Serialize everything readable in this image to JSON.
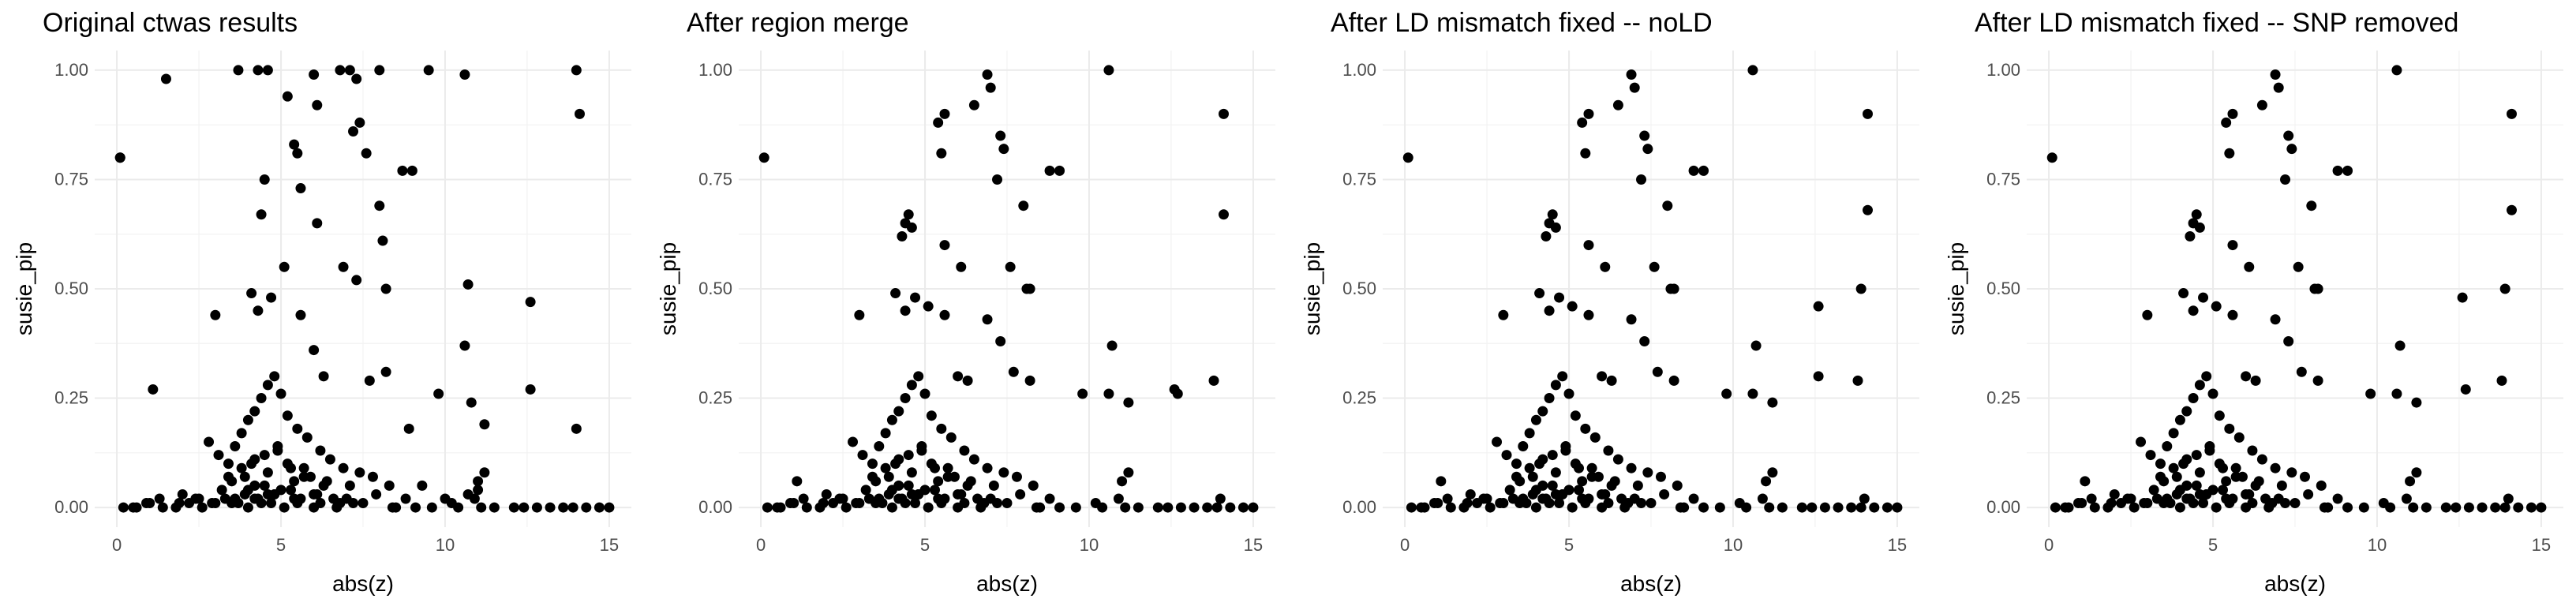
{
  "chart_data": [
    {
      "type": "scatter",
      "title": "Original ctwas results",
      "xlabel": "abs(z)",
      "ylabel": "susie_pip",
      "xlim": [
        0,
        15
      ],
      "ylim": [
        0,
        1
      ],
      "xticks": [
        0,
        5,
        10,
        15
      ],
      "yticks": [
        0.0,
        0.25,
        0.5,
        0.75,
        1.0
      ],
      "ytick_labels": [
        "0.00",
        "0.25",
        "0.50",
        "0.75",
        "1.00"
      ],
      "xtick_labels": [
        "0",
        "5",
        "10",
        "15"
      ],
      "grid": true,
      "x": [
        0.1,
        1.5,
        3.7,
        4.3,
        4.6,
        6.0,
        6.8,
        7.1,
        8.0,
        9.5,
        10.6,
        14.0,
        5.2,
        6.1,
        7.3,
        5.4,
        5.5,
        7.4,
        7.2,
        14.1,
        8.7,
        9.0,
        8.0,
        0.1,
        4.5,
        4.4,
        5.6,
        6.1,
        7.6,
        8.1,
        8.2,
        4.1,
        4.3,
        4.7,
        5.1,
        5.6,
        6.9,
        7.3,
        10.7,
        12.6,
        3.0,
        14.0,
        6.0,
        6.3,
        7.7,
        8.2,
        1.1,
        10.6,
        10.8,
        9.8,
        11.2,
        12.6,
        2.8,
        3.1,
        3.4,
        3.6,
        3.8,
        4.0,
        4.2,
        4.4,
        4.6,
        4.8,
        5.0,
        5.2,
        5.5,
        5.8,
        6.2,
        6.5,
        6.9,
        7.4,
        7.8,
        8.3,
        3.5,
        3.9,
        4.1,
        4.5,
        4.9,
        5.3,
        5.7,
        6.4,
        7.1,
        4.0,
        4.2,
        4.6,
        5.0,
        5.4,
        6.0,
        6.6,
        3.6,
        4.4,
        4.8,
        5.6,
        6.8,
        0.5,
        1.0,
        1.3,
        1.8,
        2.2,
        2.6,
        3.0,
        3.3,
        3.7,
        4.0,
        4.3,
        4.7,
        5.1,
        5.5,
        6.0,
        6.7,
        7.5,
        8.4,
        9.1,
        10.2,
        10.9,
        11.1,
        12.1,
        12.8,
        13.6,
        14.3,
        14.7,
        15.0,
        2.0,
        2.5,
        3.2,
        3.9,
        4.5,
        5.3,
        6.1,
        7.0,
        7.9,
        8.8,
        11.0,
        11.2,
        3.4,
        3.8,
        4.6,
        5.2,
        5.9,
        6.3,
        4.2,
        4.9,
        5.7,
        0.2,
        0.6,
        0.9,
        1.4,
        1.9,
        2.4,
        2.9,
        3.5,
        4.2,
        4.8,
        5.4,
        6.2,
        7.2,
        8.5,
        9.6,
        10.4,
        11.5,
        12.4,
        13.2,
        13.9,
        11.0,
        8.9,
        9.3,
        10.0,
        10.7
      ],
      "y": [
        0.8,
        0.98,
        1.0,
        1.0,
        1.0,
        0.99,
        1.0,
        1.0,
        1.0,
        1.0,
        0.99,
        1.0,
        0.94,
        0.92,
        0.98,
        0.83,
        0.81,
        0.88,
        0.86,
        0.9,
        0.77,
        0.77,
        0.69,
        0.8,
        0.75,
        0.67,
        0.73,
        0.65,
        0.81,
        0.61,
        0.5,
        0.49,
        0.45,
        0.48,
        0.55,
        0.44,
        0.55,
        0.52,
        0.51,
        0.47,
        0.44,
        0.18,
        0.36,
        0.3,
        0.29,
        0.31,
        0.27,
        0.37,
        0.24,
        0.26,
        0.19,
        0.27,
        0.15,
        0.12,
        0.1,
        0.14,
        0.17,
        0.2,
        0.22,
        0.25,
        0.28,
        0.3,
        0.26,
        0.21,
        0.18,
        0.16,
        0.13,
        0.11,
        0.09,
        0.08,
        0.07,
        0.05,
        0.06,
        0.07,
        0.1,
        0.12,
        0.14,
        0.09,
        0.07,
        0.06,
        0.05,
        0.04,
        0.05,
        0.03,
        0.04,
        0.06,
        0.03,
        0.02,
        0.02,
        0.01,
        0.03,
        0.02,
        0.01,
        0.0,
        0.01,
        0.02,
        0.0,
        0.01,
        0.0,
        0.01,
        0.02,
        0.01,
        0.0,
        0.02,
        0.01,
        0.0,
        0.01,
        0.0,
        0.0,
        0.01,
        0.0,
        0.0,
        0.01,
        0.02,
        0.0,
        0.0,
        0.0,
        0.0,
        0.0,
        0.0,
        0.0,
        0.03,
        0.02,
        0.04,
        0.03,
        0.05,
        0.04,
        0.03,
        0.02,
        0.03,
        0.02,
        0.06,
        0.08,
        0.07,
        0.09,
        0.08,
        0.1,
        0.07,
        0.05,
        0.11,
        0.13,
        0.09,
        0.0,
        0.0,
        0.01,
        0.0,
        0.01,
        0.02,
        0.01,
        0.01,
        0.02,
        0.03,
        0.02,
        0.01,
        0.01,
        0.0,
        0.0,
        0.0,
        0.0,
        0.0,
        0.0,
        0.0,
        0.04,
        0.18,
        0.05,
        0.02,
        0.03
      ]
    },
    {
      "type": "scatter",
      "title": "After region merge",
      "xlabel": "abs(z)",
      "ylabel": "susie_pip",
      "xlim": [
        0,
        15
      ],
      "ylim": [
        0,
        1
      ],
      "xticks": [
        0,
        5,
        10,
        15
      ],
      "yticks": [
        0.0,
        0.25,
        0.5,
        0.75,
        1.0
      ],
      "ytick_labels": [
        "0.00",
        "0.25",
        "0.50",
        "0.75",
        "1.00"
      ],
      "xtick_labels": [
        "0",
        "5",
        "10",
        "15"
      ],
      "grid": true,
      "x": [
        0.1,
        10.6,
        6.9,
        7.0,
        6.5,
        5.4,
        5.6,
        7.3,
        7.4,
        14.1,
        8.8,
        9.1,
        8.0,
        5.5,
        7.2,
        4.5,
        4.4,
        4.6,
        4.3,
        5.6,
        6.1,
        7.6,
        8.1,
        8.2,
        14.1,
        4.1,
        4.4,
        4.7,
        5.1,
        5.6,
        6.9,
        7.3,
        3.0,
        12.6,
        12.7,
        13.8,
        10.7,
        10.6,
        11.2,
        9.8,
        6.0,
        6.3,
        7.7,
        8.2,
        2.8,
        3.1,
        3.4,
        3.6,
        3.8,
        4.0,
        4.2,
        4.4,
        4.6,
        4.8,
        5.0,
        5.2,
        5.5,
        5.8,
        6.2,
        6.5,
        6.9,
        7.4,
        7.8,
        8.3,
        3.5,
        3.9,
        4.1,
        4.5,
        4.9,
        5.3,
        5.7,
        6.4,
        7.1,
        4.0,
        4.2,
        4.6,
        5.0,
        5.4,
        6.0,
        6.6,
        3.6,
        4.4,
        4.8,
        5.6,
        6.8,
        0.5,
        1.0,
        1.3,
        1.8,
        2.2,
        2.6,
        3.0,
        3.3,
        3.7,
        4.0,
        4.3,
        4.7,
        5.1,
        5.5,
        6.0,
        6.7,
        7.5,
        8.4,
        9.1,
        10.2,
        10.9,
        11.1,
        12.1,
        12.8,
        13.6,
        14.3,
        14.7,
        15.0,
        2.0,
        2.5,
        3.2,
        3.9,
        4.5,
        5.3,
        6.1,
        7.0,
        7.9,
        8.8,
        11.0,
        11.2,
        3.4,
        3.8,
        4.6,
        5.2,
        5.9,
        6.3,
        4.2,
        4.9,
        5.7,
        0.2,
        0.6,
        0.9,
        1.4,
        1.9,
        2.4,
        2.9,
        3.5,
        4.2,
        4.8,
        5.4,
        6.2,
        7.2,
        8.5,
        9.6,
        10.4,
        11.5,
        12.4,
        13.2,
        13.9,
        1.1,
        14.0
      ],
      "y": [
        0.8,
        1.0,
        0.99,
        0.96,
        0.92,
        0.88,
        0.9,
        0.85,
        0.82,
        0.9,
        0.77,
        0.77,
        0.69,
        0.81,
        0.75,
        0.67,
        0.65,
        0.64,
        0.62,
        0.6,
        0.55,
        0.55,
        0.5,
        0.5,
        0.67,
        0.49,
        0.45,
        0.48,
        0.46,
        0.44,
        0.43,
        0.38,
        0.44,
        0.27,
        0.26,
        0.29,
        0.37,
        0.26,
        0.24,
        0.26,
        0.3,
        0.29,
        0.31,
        0.29,
        0.15,
        0.12,
        0.1,
        0.14,
        0.17,
        0.2,
        0.22,
        0.25,
        0.28,
        0.3,
        0.26,
        0.21,
        0.18,
        0.16,
        0.13,
        0.11,
        0.09,
        0.08,
        0.07,
        0.05,
        0.06,
        0.07,
        0.1,
        0.12,
        0.14,
        0.09,
        0.07,
        0.06,
        0.05,
        0.04,
        0.05,
        0.03,
        0.04,
        0.06,
        0.03,
        0.02,
        0.02,
        0.01,
        0.03,
        0.02,
        0.01,
        0.0,
        0.01,
        0.02,
        0.0,
        0.01,
        0.0,
        0.01,
        0.02,
        0.01,
        0.0,
        0.02,
        0.01,
        0.0,
        0.01,
        0.0,
        0.0,
        0.01,
        0.0,
        0.0,
        0.01,
        0.02,
        0.0,
        0.0,
        0.0,
        0.0,
        0.0,
        0.0,
        0.0,
        0.03,
        0.02,
        0.04,
        0.03,
        0.05,
        0.04,
        0.03,
        0.02,
        0.03,
        0.02,
        0.06,
        0.08,
        0.07,
        0.09,
        0.08,
        0.1,
        0.07,
        0.05,
        0.11,
        0.13,
        0.09,
        0.0,
        0.0,
        0.01,
        0.0,
        0.01,
        0.02,
        0.01,
        0.01,
        0.02,
        0.03,
        0.02,
        0.01,
        0.01,
        0.0,
        0.0,
        0.0,
        0.0,
        0.0,
        0.0,
        0.0,
        0.06,
        0.02
      ]
    },
    {
      "type": "scatter",
      "title": "After LD mismatch fixed -- noLD",
      "xlabel": "abs(z)",
      "ylabel": "susie_pip",
      "xlim": [
        0,
        15
      ],
      "ylim": [
        0,
        1
      ],
      "xticks": [
        0,
        5,
        10,
        15
      ],
      "yticks": [
        0.0,
        0.25,
        0.5,
        0.75,
        1.0
      ],
      "ytick_labels": [
        "0.00",
        "0.25",
        "0.50",
        "0.75",
        "1.00"
      ],
      "xtick_labels": [
        "0",
        "5",
        "10",
        "15"
      ],
      "grid": true,
      "x": [
        0.1,
        10.6,
        6.9,
        7.0,
        6.5,
        5.4,
        5.6,
        7.3,
        7.4,
        14.1,
        8.8,
        9.1,
        8.0,
        5.5,
        7.2,
        4.5,
        4.4,
        4.6,
        4.3,
        5.6,
        6.1,
        7.6,
        8.1,
        8.2,
        14.1,
        4.1,
        4.4,
        4.7,
        5.1,
        5.6,
        6.9,
        7.3,
        3.0,
        12.6,
        12.6,
        13.8,
        13.9,
        10.7,
        10.6,
        11.2,
        9.8,
        6.0,
        6.3,
        7.7,
        8.2,
        2.8,
        3.1,
        3.4,
        3.6,
        3.8,
        4.0,
        4.2,
        4.4,
        4.6,
        4.8,
        5.0,
        5.2,
        5.5,
        5.8,
        6.2,
        6.5,
        6.9,
        7.4,
        7.8,
        8.3,
        3.5,
        3.9,
        4.1,
        4.5,
        4.9,
        5.3,
        5.7,
        6.4,
        7.1,
        4.0,
        4.2,
        4.6,
        5.0,
        5.4,
        6.0,
        6.6,
        3.6,
        4.4,
        4.8,
        5.6,
        6.8,
        0.5,
        1.0,
        1.3,
        1.8,
        2.2,
        2.6,
        3.0,
        3.3,
        3.7,
        4.0,
        4.3,
        4.7,
        5.1,
        5.5,
        6.0,
        6.7,
        7.5,
        8.4,
        9.1,
        10.2,
        10.9,
        11.1,
        12.1,
        12.8,
        13.6,
        14.3,
        14.7,
        15.0,
        2.0,
        2.5,
        3.2,
        3.9,
        4.5,
        5.3,
        6.1,
        7.0,
        7.9,
        8.8,
        11.0,
        11.2,
        3.4,
        3.8,
        4.6,
        5.2,
        5.9,
        6.3,
        4.2,
        4.9,
        5.7,
        0.2,
        0.6,
        0.9,
        1.4,
        1.9,
        2.4,
        2.9,
        3.5,
        4.2,
        4.8,
        5.4,
        6.2,
        7.2,
        8.5,
        9.6,
        10.4,
        11.5,
        12.4,
        13.2,
        13.9,
        1.1,
        14.0
      ],
      "y": [
        0.8,
        1.0,
        0.99,
        0.96,
        0.92,
        0.88,
        0.9,
        0.85,
        0.82,
        0.9,
        0.77,
        0.77,
        0.69,
        0.81,
        0.75,
        0.67,
        0.65,
        0.64,
        0.62,
        0.6,
        0.55,
        0.55,
        0.5,
        0.5,
        0.68,
        0.49,
        0.45,
        0.48,
        0.46,
        0.44,
        0.43,
        0.38,
        0.44,
        0.46,
        0.3,
        0.29,
        0.5,
        0.37,
        0.26,
        0.24,
        0.26,
        0.3,
        0.29,
        0.31,
        0.29,
        0.15,
        0.12,
        0.1,
        0.14,
        0.17,
        0.2,
        0.22,
        0.25,
        0.28,
        0.3,
        0.26,
        0.21,
        0.18,
        0.16,
        0.13,
        0.11,
        0.09,
        0.08,
        0.07,
        0.05,
        0.06,
        0.07,
        0.1,
        0.12,
        0.14,
        0.09,
        0.07,
        0.06,
        0.05,
        0.04,
        0.05,
        0.03,
        0.04,
        0.06,
        0.03,
        0.02,
        0.02,
        0.01,
        0.03,
        0.02,
        0.01,
        0.0,
        0.01,
        0.02,
        0.0,
        0.01,
        0.0,
        0.01,
        0.02,
        0.01,
        0.0,
        0.02,
        0.01,
        0.0,
        0.01,
        0.0,
        0.0,
        0.01,
        0.0,
        0.0,
        0.01,
        0.02,
        0.0,
        0.0,
        0.0,
        0.0,
        0.0,
        0.0,
        0.0,
        0.03,
        0.02,
        0.04,
        0.03,
        0.05,
        0.04,
        0.03,
        0.02,
        0.03,
        0.02,
        0.06,
        0.08,
        0.07,
        0.09,
        0.08,
        0.1,
        0.07,
        0.05,
        0.11,
        0.13,
        0.09,
        0.0,
        0.0,
        0.01,
        0.0,
        0.01,
        0.02,
        0.01,
        0.01,
        0.02,
        0.03,
        0.02,
        0.01,
        0.01,
        0.0,
        0.0,
        0.0,
        0.0,
        0.0,
        0.0,
        0.0,
        0.06,
        0.02
      ]
    },
    {
      "type": "scatter",
      "title": "After LD mismatch fixed -- SNP removed",
      "xlabel": "abs(z)",
      "ylabel": "susie_pip",
      "xlim": [
        0,
        15
      ],
      "ylim": [
        0,
        1
      ],
      "xticks": [
        0,
        5,
        10,
        15
      ],
      "yticks": [
        0.0,
        0.25,
        0.5,
        0.75,
        1.0
      ],
      "ytick_labels": [
        "0.00",
        "0.25",
        "0.50",
        "0.75",
        "1.00"
      ],
      "xtick_labels": [
        "0",
        "5",
        "10",
        "15"
      ],
      "grid": true,
      "x": [
        0.1,
        10.6,
        6.9,
        7.0,
        6.5,
        5.4,
        5.6,
        7.3,
        7.4,
        14.1,
        8.8,
        9.1,
        8.0,
        5.5,
        7.2,
        4.5,
        4.4,
        4.6,
        4.3,
        5.6,
        6.1,
        7.6,
        8.1,
        8.2,
        14.1,
        4.1,
        4.4,
        4.7,
        5.1,
        5.6,
        6.9,
        7.3,
        3.0,
        12.6,
        12.7,
        13.8,
        13.9,
        10.7,
        10.6,
        11.2,
        9.8,
        6.0,
        6.3,
        7.7,
        8.2,
        2.8,
        3.1,
        3.4,
        3.6,
        3.8,
        4.0,
        4.2,
        4.4,
        4.6,
        4.8,
        5.0,
        5.2,
        5.5,
        5.8,
        6.2,
        6.5,
        6.9,
        7.4,
        7.8,
        8.3,
        3.5,
        3.9,
        4.1,
        4.5,
        4.9,
        5.3,
        5.7,
        6.4,
        7.1,
        4.0,
        4.2,
        4.6,
        5.0,
        5.4,
        6.0,
        6.6,
        3.6,
        4.4,
        4.8,
        5.6,
        6.8,
        0.5,
        1.0,
        1.3,
        1.8,
        2.2,
        2.6,
        3.0,
        3.3,
        3.7,
        4.0,
        4.3,
        4.7,
        5.1,
        5.5,
        6.0,
        6.7,
        7.5,
        8.4,
        9.1,
        10.2,
        10.9,
        11.1,
        12.1,
        12.8,
        13.6,
        14.3,
        14.7,
        15.0,
        2.0,
        2.5,
        3.2,
        3.9,
        4.5,
        5.3,
        6.1,
        7.0,
        7.9,
        8.8,
        11.0,
        11.2,
        3.4,
        3.8,
        4.6,
        5.2,
        5.9,
        6.3,
        4.2,
        4.9,
        5.7,
        0.2,
        0.6,
        0.9,
        1.4,
        1.9,
        2.4,
        2.9,
        3.5,
        4.2,
        4.8,
        5.4,
        6.2,
        7.2,
        8.5,
        9.6,
        10.4,
        11.5,
        12.4,
        13.2,
        13.9,
        1.1,
        14.0
      ],
      "y": [
        0.8,
        1.0,
        0.99,
        0.96,
        0.92,
        0.88,
        0.9,
        0.85,
        0.82,
        0.9,
        0.77,
        0.77,
        0.69,
        0.81,
        0.75,
        0.67,
        0.65,
        0.64,
        0.62,
        0.6,
        0.55,
        0.55,
        0.5,
        0.5,
        0.68,
        0.49,
        0.45,
        0.48,
        0.46,
        0.44,
        0.43,
        0.38,
        0.44,
        0.48,
        0.27,
        0.29,
        0.5,
        0.37,
        0.26,
        0.24,
        0.26,
        0.3,
        0.29,
        0.31,
        0.29,
        0.15,
        0.12,
        0.1,
        0.14,
        0.17,
        0.2,
        0.22,
        0.25,
        0.28,
        0.3,
        0.26,
        0.21,
        0.18,
        0.16,
        0.13,
        0.11,
        0.09,
        0.08,
        0.07,
        0.05,
        0.06,
        0.07,
        0.1,
        0.12,
        0.14,
        0.09,
        0.07,
        0.06,
        0.05,
        0.04,
        0.05,
        0.03,
        0.04,
        0.06,
        0.03,
        0.02,
        0.02,
        0.01,
        0.03,
        0.02,
        0.01,
        0.0,
        0.01,
        0.02,
        0.0,
        0.01,
        0.0,
        0.01,
        0.02,
        0.01,
        0.0,
        0.02,
        0.01,
        0.0,
        0.01,
        0.0,
        0.0,
        0.01,
        0.0,
        0.0,
        0.01,
        0.02,
        0.0,
        0.0,
        0.0,
        0.0,
        0.0,
        0.0,
        0.0,
        0.03,
        0.02,
        0.04,
        0.03,
        0.05,
        0.04,
        0.03,
        0.02,
        0.03,
        0.02,
        0.06,
        0.08,
        0.07,
        0.09,
        0.08,
        0.1,
        0.07,
        0.05,
        0.11,
        0.13,
        0.09,
        0.0,
        0.0,
        0.01,
        0.0,
        0.01,
        0.02,
        0.01,
        0.01,
        0.02,
        0.03,
        0.02,
        0.01,
        0.01,
        0.0,
        0.0,
        0.0,
        0.0,
        0.0,
        0.0,
        0.0,
        0.06,
        0.02
      ]
    }
  ]
}
